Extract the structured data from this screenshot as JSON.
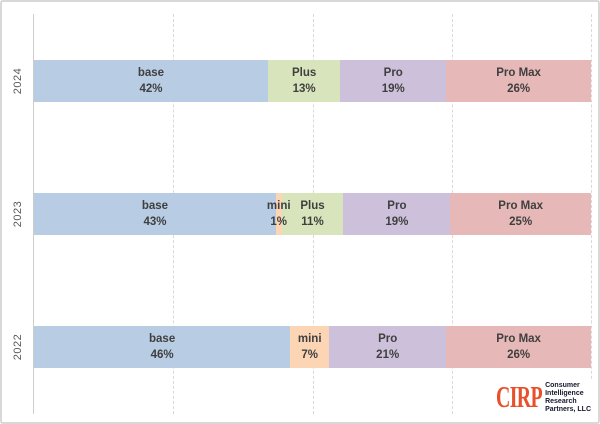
{
  "chart_data": {
    "type": "bar",
    "orientation": "horizontal_stacked",
    "title": "",
    "xlabel": "",
    "ylabel": "",
    "categories": [
      "2024",
      "2023",
      "2022"
    ],
    "series": [
      {
        "name": "base",
        "values": [
          42,
          43,
          46
        ],
        "color": "#b8cce4"
      },
      {
        "name": "mini",
        "values": [
          0,
          1,
          7
        ],
        "color": "#fcd5b4"
      },
      {
        "name": "Plus",
        "values": [
          13,
          11,
          0
        ],
        "color": "#d7e4bc"
      },
      {
        "name": "Pro",
        "values": [
          19,
          19,
          21
        ],
        "color": "#ccc0da"
      },
      {
        "name": "Pro Max",
        "values": [
          26,
          25,
          26
        ],
        "color": "#e6b8b7"
      }
    ],
    "value_suffix": "%",
    "xlim": [
      0,
      100
    ],
    "gridlines_percent": [
      25,
      50,
      75,
      100
    ],
    "grid": "vertical-dashed",
    "legend": "none",
    "bar_labels": "name_and_percent"
  },
  "logo": {
    "wordmark": "CIRP",
    "tagline_lines": [
      "Consumer",
      "Intelligence",
      "Research",
      "Partners, LLC"
    ],
    "wordmark_color": "#e8502b",
    "tagline_color": "#16162e"
  },
  "colors": {
    "bar_label_text": "#3f3f3f",
    "axis_text": "#595959",
    "gridline": "#d9d9d9",
    "frame_border": "#d8d8d8"
  }
}
